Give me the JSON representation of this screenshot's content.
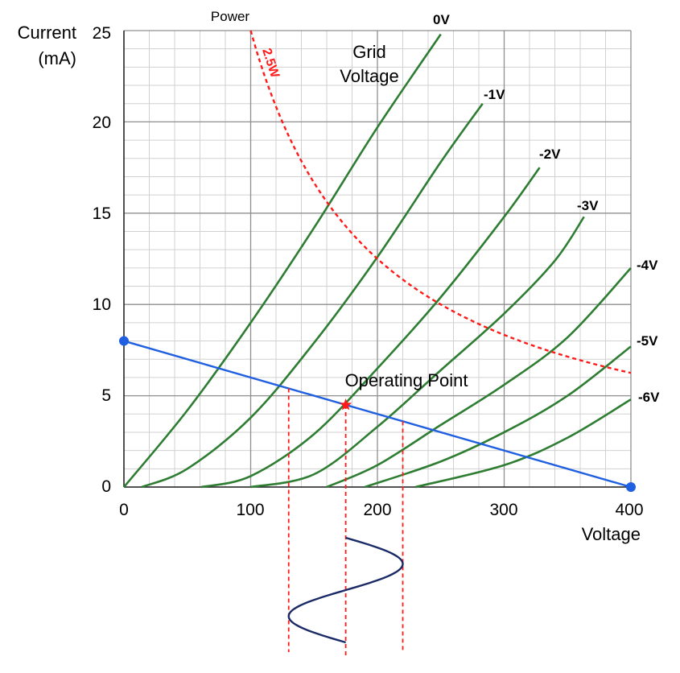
{
  "chart_data": {
    "type": "line",
    "title": "",
    "xlabel": "Voltage",
    "ylabel_line1": "Current",
    "ylabel_line2": "(mA)",
    "xlim": [
      0,
      400
    ],
    "ylim": [
      0,
      25
    ],
    "x_ticks": [
      "0",
      "100",
      "200",
      "300",
      "400"
    ],
    "y_ticks": [
      "0",
      "5",
      "10",
      "15",
      "20",
      "25"
    ],
    "grid": true,
    "family_label_line1": "Grid",
    "family_label_line2": "Voltage",
    "series": [
      {
        "name": "0V",
        "x": [
          0,
          50,
          100,
          150,
          200,
          250
        ],
        "y": [
          0,
          4.2,
          9.0,
          14.2,
          19.7,
          24.8
        ]
      },
      {
        "name": "-1V",
        "x": [
          14,
          50,
          100,
          150,
          200,
          250,
          283
        ],
        "y": [
          0,
          1.0,
          3.8,
          7.9,
          12.6,
          17.8,
          21.0
        ]
      },
      {
        "name": "-2V",
        "x": [
          61,
          100,
          150,
          200,
          250,
          300,
          328
        ],
        "y": [
          0,
          0.6,
          2.9,
          6.5,
          10.4,
          14.8,
          17.5
        ]
      },
      {
        "name": "-3V",
        "x": [
          100,
          150,
          200,
          250,
          300,
          340,
          363
        ],
        "y": [
          0,
          0.7,
          3.3,
          6.4,
          9.5,
          12.4,
          14.8
        ]
      },
      {
        "name": "-4V",
        "x": [
          160,
          200,
          250,
          300,
          350,
          400
        ],
        "y": [
          0,
          1.2,
          3.4,
          5.6,
          8.2,
          12.0
        ]
      },
      {
        "name": "-5V",
        "x": [
          190,
          250,
          300,
          350,
          400
        ],
        "y": [
          0,
          1.4,
          3.0,
          5.0,
          7.7
        ]
      },
      {
        "name": "-6V",
        "x": [
          230,
          300,
          350,
          400
        ],
        "y": [
          0,
          1.2,
          2.7,
          4.8
        ]
      }
    ],
    "power_curve": {
      "name": "2.5W",
      "label": "Power",
      "watts": 2.5,
      "color": "#ff1a1a"
    },
    "load_line": {
      "x": [
        0,
        400
      ],
      "y": [
        8,
        0
      ],
      "color": "#1f5fe0"
    },
    "operating_point": {
      "label": "Operating Point",
      "x": 175,
      "y": 4.5,
      "color": "#ff1a1a"
    },
    "signal_swing_x": [
      130,
      175,
      220
    ],
    "colors": {
      "curves": "#2e7d32",
      "grid_major": "#8f8f8f",
      "grid_minor": "#d0d0d0",
      "signal": "#1a2a66"
    }
  }
}
